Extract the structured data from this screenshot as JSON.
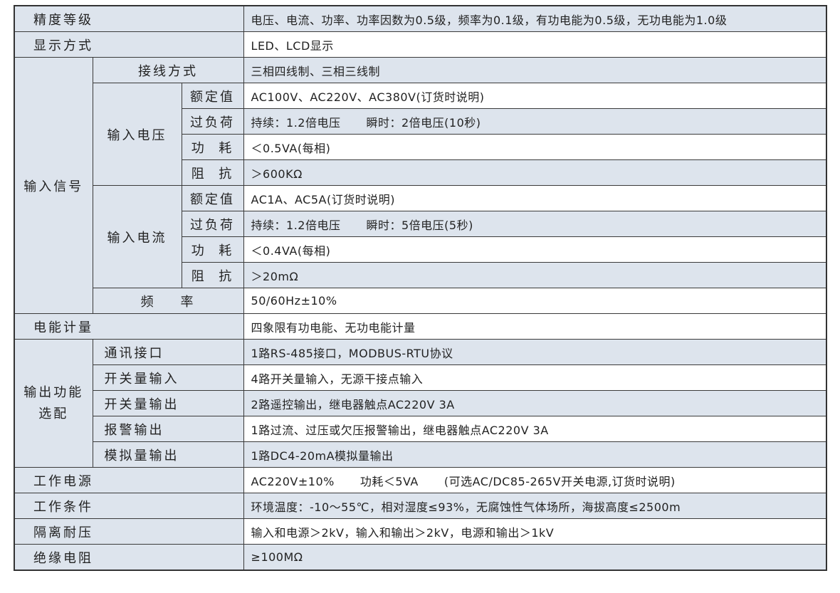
{
  "colors": {
    "label_bg": "#dde4ed",
    "stripe_bg": "#dde4ed",
    "border": "#333333"
  },
  "labels": {
    "accuracy": "精度等级",
    "display": "显示方式",
    "input_signal": "输入信号",
    "wiring": "接线方式",
    "input_voltage": "输入电压",
    "input_current": "输入电流",
    "rated": "额定值",
    "overload": "过负荷",
    "power_consumption": "功  耗",
    "impedance": "阻  抗",
    "frequency": "频    率",
    "energy": "电能计量",
    "output_options": "输出功能选配",
    "comm": "通讯接口",
    "di": "开关量输入",
    "do": "开关量输出",
    "alarm": "报警输出",
    "ao": "模拟量输出",
    "power_supply": "工作电源",
    "conditions": "工作条件",
    "isolation": "隔离耐压",
    "insulation": "绝缘电阻"
  },
  "values": {
    "accuracy": "电压、电流、功率、功率因数为0.5级，频率为0.1级，有功电能为0.5级，无功电能为1.0级",
    "display": "LED、LCD显示",
    "wiring": "三相四线制、三相三线制",
    "v_rated": "AC100V、AC220V、AC380V(订货时说明)",
    "v_overload_a": "持续：1.2倍电压",
    "v_overload_b": "瞬时：2倍电压(10秒)",
    "v_power": "＜0.5VA(每相)",
    "v_impedance": "＞600KΩ",
    "i_rated": "AC1A、AC5A(订货时说明)",
    "i_overload_a": "持续：1.2倍电压",
    "i_overload_b": "瞬时：5倍电压(5秒)",
    "i_power": "＜0.4VA(每相)",
    "i_impedance": "＞20mΩ",
    "frequency": "50/60Hz±10%",
    "energy": "四象限有功电能、无功电能计量",
    "comm": "1路RS-485接口，MODBUS-RTU协议",
    "di": "4路开关量输入，无源干接点输入",
    "do": "2路遥控输出，继电器触点AC220V 3A",
    "alarm": "1路过流、过压或欠压报警输出，继电器触点AC220V 3A",
    "ao": "1路DC4-20mA模拟量输出",
    "power_supply_a": "AC220V±10%",
    "power_supply_b": "功耗＜5VA",
    "power_supply_c": "(可选AC/DC85-265V开关电源,订货时说明)",
    "conditions": "环境温度：-10～55℃，相对湿度≤93%，无腐蚀性气体场所，海拔高度≤2500m",
    "isolation": "输入和电源＞2kV，输入和输出＞2kV，电源和输出＞1kV",
    "insulation": "≥100MΩ"
  }
}
